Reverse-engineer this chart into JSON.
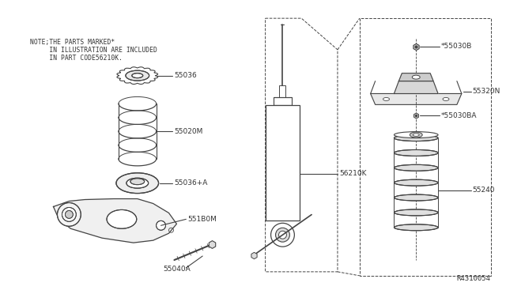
{
  "bg_color": "#ffffff",
  "line_color": "#444444",
  "text_color": "#333333",
  "fig_width": 6.4,
  "fig_height": 3.72,
  "note_line1": "NOTE;THE PARTS MARKED*",
  "note_line2": "     IN ILLUSTRATION ARE INCLUDED",
  "note_line3": "     IN PART CODE56210K.",
  "ref_number": "R4310054"
}
